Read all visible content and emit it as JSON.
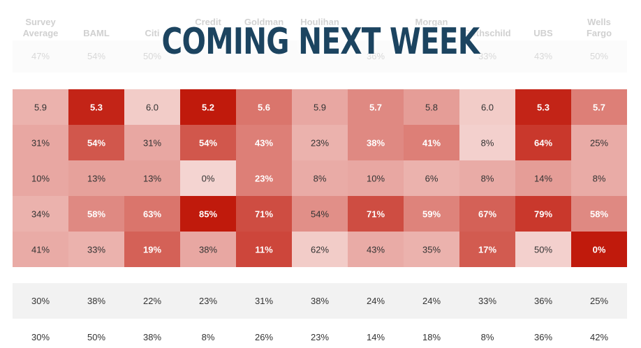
{
  "banner": {
    "text": "COMING NEXT WEEK"
  },
  "chart_data": {
    "type": "heatmap",
    "columns": [
      [
        "Survey",
        "Average"
      ],
      [
        "",
        "BAML"
      ],
      [
        "",
        "Citi"
      ],
      [
        "Credit",
        ""
      ],
      [
        "Goldman",
        ""
      ],
      [
        "Houlihan",
        ""
      ],
      [
        "",
        ""
      ],
      [
        "Morgan",
        ""
      ],
      [
        "",
        "Rothschild"
      ],
      [
        "",
        "UBS"
      ],
      [
        "Wells",
        "Fargo"
      ]
    ],
    "faded_row": [
      "47%",
      "54%",
      "50%",
      "",
      "",
      "",
      "36%",
      "",
      "33%",
      "43%",
      "50%"
    ],
    "heatmap_rows": [
      {
        "values": [
          "5.9",
          "5.3",
          "6.0",
          "5.2",
          "5.6",
          "5.9",
          "5.7",
          "5.8",
          "6.0",
          "5.3",
          "5.7"
        ],
        "shades": [
          0.25,
          0.95,
          0.12,
          1.0,
          0.55,
          0.3,
          0.45,
          0.35,
          0.12,
          0.95,
          0.5
        ]
      },
      {
        "values": [
          "31%",
          "54%",
          "31%",
          "54%",
          "43%",
          "23%",
          "38%",
          "41%",
          "8%",
          "64%",
          "25%"
        ],
        "shades": [
          0.3,
          0.7,
          0.3,
          0.7,
          0.5,
          0.25,
          0.45,
          0.5,
          0.1,
          0.85,
          0.28
        ]
      },
      {
        "values": [
          "10%",
          "13%",
          "13%",
          "0%",
          "23%",
          "8%",
          "10%",
          "6%",
          "8%",
          "14%",
          "8%"
        ],
        "shades": [
          0.3,
          0.33,
          0.33,
          0.08,
          0.5,
          0.28,
          0.3,
          0.25,
          0.28,
          0.35,
          0.28
        ]
      },
      {
        "values": [
          "34%",
          "58%",
          "63%",
          "85%",
          "71%",
          "54%",
          "71%",
          "59%",
          "67%",
          "79%",
          "58%"
        ],
        "shades": [
          0.25,
          0.45,
          0.55,
          1.0,
          0.75,
          0.42,
          0.75,
          0.48,
          0.65,
          0.85,
          0.45
        ]
      },
      {
        "values": [
          "41%",
          "33%",
          "19%",
          "38%",
          "11%",
          "62%",
          "43%",
          "35%",
          "17%",
          "50%",
          "0%"
        ],
        "shades": [
          0.28,
          0.25,
          0.65,
          0.3,
          0.78,
          0.12,
          0.28,
          0.25,
          0.68,
          0.1,
          1.0
        ]
      }
    ],
    "bottom_rows": [
      [
        "30%",
        "38%",
        "22%",
        "23%",
        "31%",
        "38%",
        "24%",
        "24%",
        "33%",
        "36%",
        "25%"
      ],
      [
        "30%",
        "50%",
        "38%",
        "8%",
        "26%",
        "23%",
        "14%",
        "18%",
        "8%",
        "36%",
        "42%"
      ]
    ],
    "colors": {
      "low": "#f9e4e2",
      "high": "#c01a0c",
      "gray": "#f2f2f2"
    }
  }
}
